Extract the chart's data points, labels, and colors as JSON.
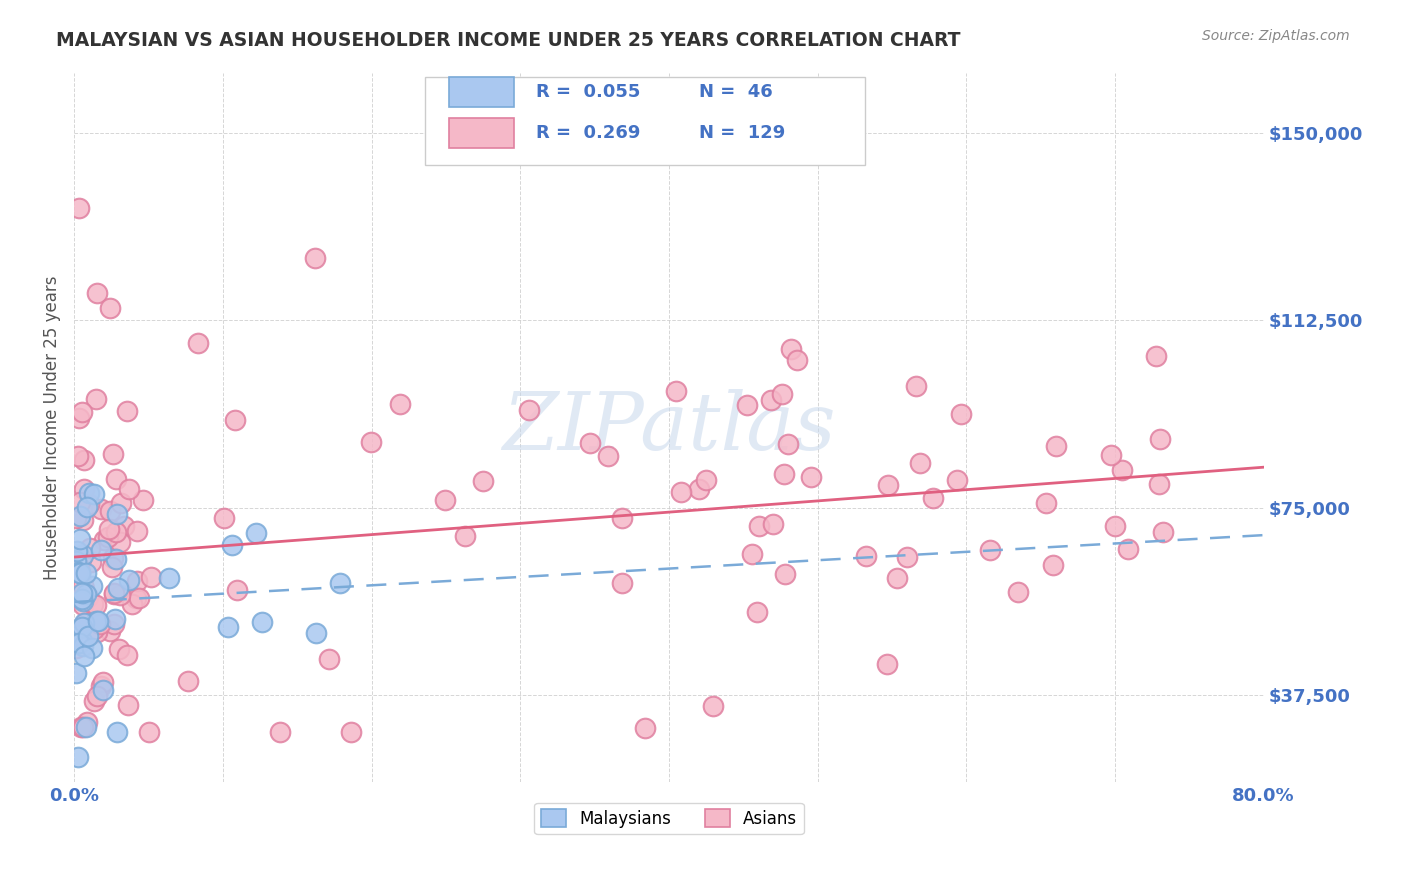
{
  "title": "MALAYSIAN VS ASIAN HOUSEHOLDER INCOME UNDER 25 YEARS CORRELATION CHART",
  "source": "Source: ZipAtlas.com",
  "ylabel": "Householder Income Under 25 years",
  "legend_label1": "Malaysians",
  "legend_label2": "Asians",
  "R1": 0.055,
  "N1": 46,
  "R2": 0.269,
  "N2": 129,
  "color_malaysian_fill": "#aac8f0",
  "color_malaysian_edge": "#7aaad8",
  "color_asian_fill": "#f5b8c8",
  "color_asian_edge": "#e080a0",
  "color_line_malaysian": "#7aaad8",
  "color_line_asian": "#e06080",
  "watermark_color": "#c8d8ec",
  "title_color": "#333333",
  "axis_label_color": "#555555",
  "tick_color": "#4472c4",
  "legend_R_color": "#4472c4",
  "background_color": "#ffffff",
  "grid_color": "#cccccc",
  "xmin": 0.0,
  "xmax": 0.8,
  "ymin": 20000,
  "ymax": 162000,
  "yticks": [
    37500,
    75000,
    112500,
    150000
  ],
  "ytick_labels": [
    "$37,500",
    "$75,000",
    "$112,500",
    "$150,000"
  ]
}
